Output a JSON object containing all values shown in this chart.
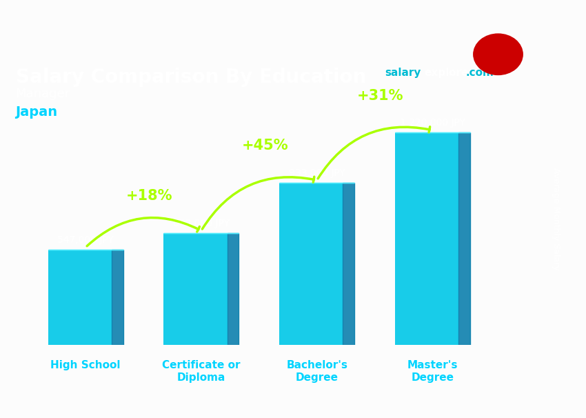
{
  "title": "Salary Comparison By Education",
  "subtitle_role": "Manager",
  "subtitle_country": "Japan",
  "brand_salary": "salary",
  "brand_explorer": "explorer",
  "brand_com": ".com",
  "ylabel": "Average Monthly Salary",
  "categories": [
    "High School",
    "Certificate or\nDiploma",
    "Bachelor's\nDegree",
    "Master's\nDegree"
  ],
  "values": [
    547000,
    643000,
    933000,
    1220000
  ],
  "value_labels": [
    "547,000 JPY",
    "643,000 JPY",
    "933,000 JPY",
    "1,220,000 JPY"
  ],
  "pct_labels": [
    "+18%",
    "+45%",
    "+31%"
  ],
  "bar_color_top": "#00d4ff",
  "bar_color_bottom": "#0090c0",
  "bar_color_face": "#00bcd4",
  "background_color": "#00000000",
  "title_color": "#ffffff",
  "subtitle_role_color": "#ffffff",
  "subtitle_country_color": "#00d4ff",
  "value_label_color": "#ffffff",
  "pct_label_color": "#aaff00",
  "xlabel_color": "#00d4ff",
  "ylabel_color": "#ffffff",
  "brand_salary_color": "#00bcd4",
  "brand_explorer_color": "#ffffff",
  "brand_com_color": "#00bcd4"
}
